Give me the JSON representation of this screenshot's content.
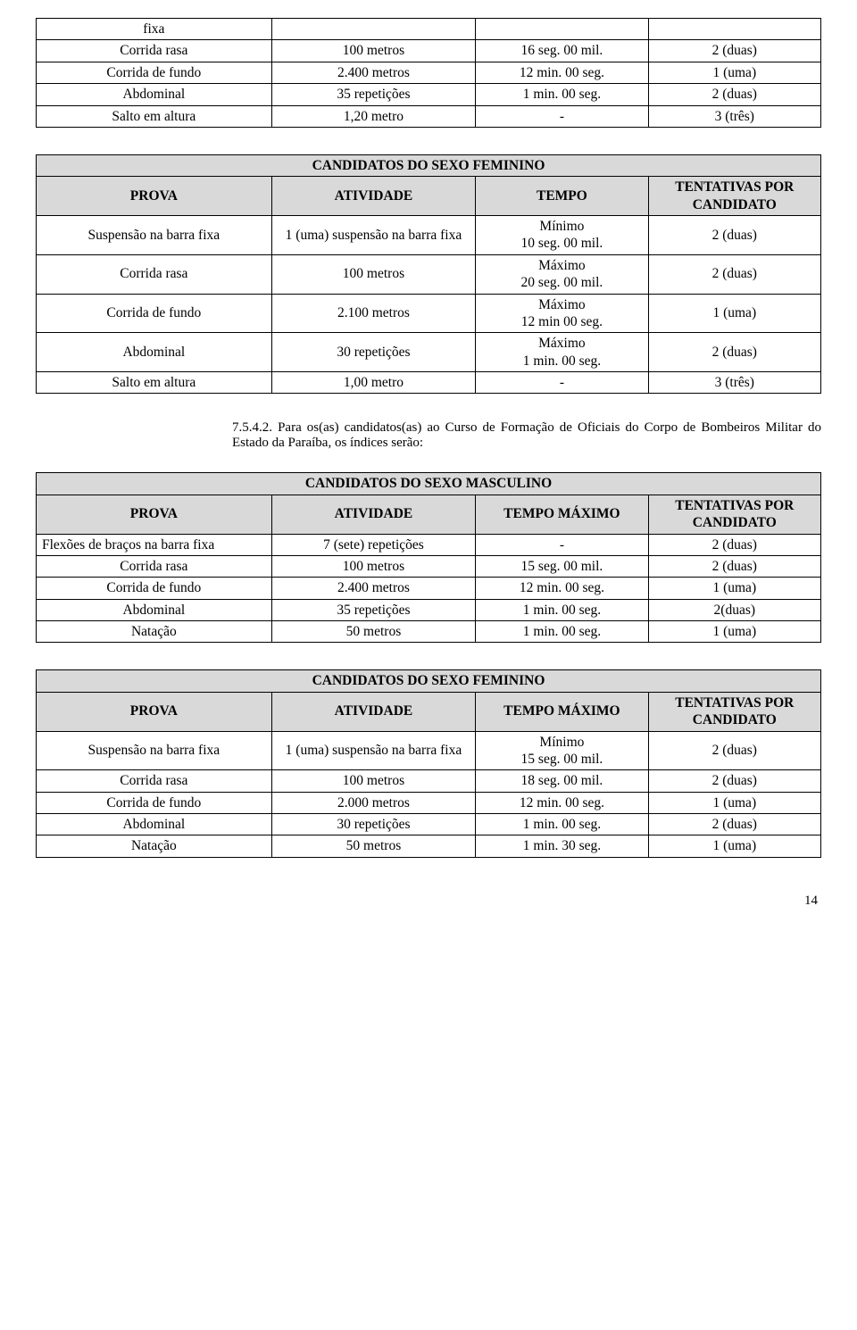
{
  "colors": {
    "band_bg": "#d9d9d9",
    "border": "#000000",
    "text": "#000000",
    "page_bg": "#ffffff"
  },
  "fonts": {
    "family": "Times New Roman",
    "body_size_pt": 12
  },
  "table1": {
    "rows": [
      {
        "c1": "fixa",
        "c2": "",
        "c3": "",
        "c4": ""
      },
      {
        "c1": "Corrida rasa",
        "c2": "100 metros",
        "c3": "16 seg. 00 mil.",
        "c4": "2 (duas)"
      },
      {
        "c1": "Corrida de fundo",
        "c2": "2.400 metros",
        "c3": "12 min. 00 seg.",
        "c4": "1 (uma)"
      },
      {
        "c1": "Abdominal",
        "c2": "35 repetições",
        "c3": "1 min. 00 seg.",
        "c4": "2 (duas)"
      },
      {
        "c1": "Salto em altura",
        "c2": "1,20 metro",
        "c3": "-",
        "c4": "3 (três)"
      }
    ]
  },
  "tableFem1": {
    "title": "CANDIDATOS DO SEXO FEMININO",
    "headers": {
      "h1": "PROVA",
      "h2": "ATIVIDADE",
      "h3": "TEMPO",
      "h4": "TENTATIVAS POR CANDIDATO"
    },
    "rows": [
      {
        "c1": "Suspensão na barra fixa",
        "c2": "1 (uma) suspensão na barra fixa",
        "c3": "Mínimo\n10 seg. 00 mil.",
        "c4": "2 (duas)"
      },
      {
        "c1": "Corrida rasa",
        "c2": "100 metros",
        "c3": "Máximo\n20 seg. 00 mil.",
        "c4": "2 (duas)"
      },
      {
        "c1": "Corrida de fundo",
        "c2": "2.100 metros",
        "c3": "Máximo\n12 min 00 seg.",
        "c4": "1 (uma)"
      },
      {
        "c1": "Abdominal",
        "c2": "30 repetições",
        "c3": "Máximo\n1 min. 00 seg.",
        "c4": "2 (duas)"
      },
      {
        "c1": "Salto em altura",
        "c2": "1,00 metro",
        "c3": "-",
        "c4": "3 (três)"
      }
    ]
  },
  "paragraph": {
    "num": "7.5.4.2.",
    "text": "Para os(as) candidatos(as) ao Curso de Formação de Oficiais do Corpo de Bombeiros Militar do Estado da Paraíba, os índices serão:"
  },
  "tableMasc": {
    "title": "CANDIDATOS DO SEXO MASCULINO",
    "headers": {
      "h1": "PROVA",
      "h2": "ATIVIDADE",
      "h3": "TEMPO MÁXIMO",
      "h4": "TENTATIVAS POR CANDIDATO"
    },
    "rows": [
      {
        "c1": "Flexões de braços na barra fixa",
        "c2": "7 (sete) repetições",
        "c3": "-",
        "c4": "2 (duas)"
      },
      {
        "c1": "Corrida rasa",
        "c2": "100 metros",
        "c3": "15 seg. 00 mil.",
        "c4": "2 (duas)"
      },
      {
        "c1": "Corrida de fundo",
        "c2": "2.400 metros",
        "c3": "12 min. 00 seg.",
        "c4": "1 (uma)"
      },
      {
        "c1": "Abdominal",
        "c2": "35 repetições",
        "c3": "1 min. 00 seg.",
        "c4": "2(duas)"
      },
      {
        "c1": "Natação",
        "c2": "50 metros",
        "c3": "1 min. 00 seg.",
        "c4": "1 (uma)"
      }
    ]
  },
  "tableFem2": {
    "title": "CANDIDATOS DO SEXO FEMININO",
    "headers": {
      "h1": "PROVA",
      "h2": "ATIVIDADE",
      "h3": "TEMPO MÁXIMO",
      "h4": "TENTATIVAS POR CANDIDATO"
    },
    "rows": [
      {
        "c1": "Suspensão na barra fixa",
        "c2": "1 (uma) suspensão na barra fixa",
        "c3": "Mínimo\n15 seg. 00 mil.",
        "c4": "2 (duas)"
      },
      {
        "c1": "Corrida rasa",
        "c2": "100 metros",
        "c3": "18 seg. 00 mil.",
        "c4": "2 (duas)"
      },
      {
        "c1": "Corrida de fundo",
        "c2": "2.000 metros",
        "c3": "12 min. 00 seg.",
        "c4": "1 (uma)"
      },
      {
        "c1": "Abdominal",
        "c2": "30 repetições",
        "c3": "1 min. 00 seg.",
        "c4": "2 (duas)"
      },
      {
        "c1": "Natação",
        "c2": "50 metros",
        "c3": "1 min. 30 seg.",
        "c4": "1 (uma)"
      }
    ]
  },
  "page_number": "14"
}
